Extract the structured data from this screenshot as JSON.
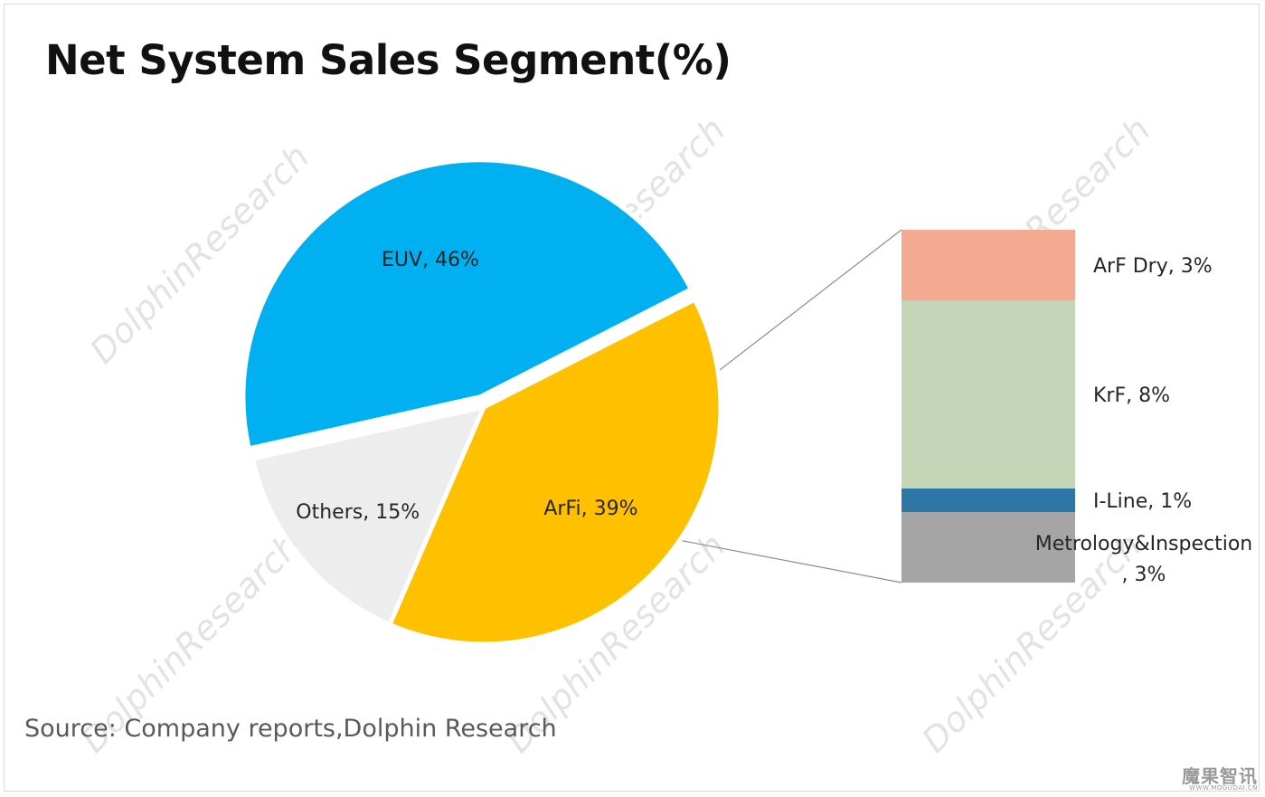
{
  "title": "Net System Sales Segment(%)",
  "source": "Source: Company reports,Dolphin Research",
  "watermark": {
    "text": "DolphinResearch",
    "corner_title": "魔果智讯",
    "corner_sub": "WWW.MOGUOAI.CN"
  },
  "chart_data": {
    "type": "bar-of-pie",
    "title": "Net System Sales Segment(%)",
    "pie": {
      "slices": [
        {
          "name": "ArFi",
          "value": 39,
          "label": "ArFi, 39%",
          "color": "#FFC000"
        },
        {
          "name": "Others",
          "value": 15,
          "label": "Others, 15%",
          "color": "#EDEDED"
        },
        {
          "name": "EUV",
          "value": 46,
          "label": "EUV, 46%",
          "color": "#00B0F0"
        }
      ]
    },
    "bar": {
      "parent": "Others",
      "segments": [
        {
          "name": "ArF Dry",
          "value": 3,
          "label": "ArF Dry, 3%",
          "color": "#F4AA90"
        },
        {
          "name": "KrF",
          "value": 8,
          "label": "KrF, 8%",
          "color": "#C5D5B8"
        },
        {
          "name": "I-Line",
          "value": 1,
          "label": "I-Line, 1%",
          "color": "#2E75A8"
        },
        {
          "name": "Metrology&Inspection",
          "value": 3,
          "label": [
            "Metrology&Inspection",
            ", 3%"
          ],
          "color": "#A5A5A5"
        }
      ]
    },
    "unit": "%"
  }
}
